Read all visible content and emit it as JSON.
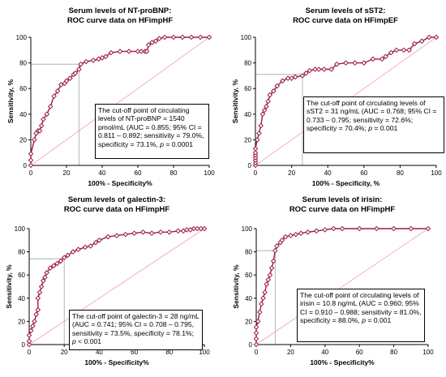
{
  "colors": {
    "curve": "#9b1b46",
    "marker_fill": "#ffffff",
    "reference_line": "#f2a3a3",
    "cutoff_line": "#a6a6a6",
    "axis": "#000000"
  },
  "chart_data": [
    {
      "type": "line",
      "title": "Serum levels of NT-proBNP:",
      "subtitle": "ROC curve data on HFimpHF",
      "xlabel": "100% - Specificity%",
      "ylabel": "Sensitivity, %",
      "xlim": [
        0,
        100
      ],
      "ylim": [
        0,
        100
      ],
      "xticks": [
        "0",
        "20",
        "40",
        "60",
        "80",
        "100"
      ],
      "yticks": [
        "0",
        "20",
        "40",
        "60",
        "80",
        "100"
      ],
      "grid": false,
      "cutoff": {
        "x": 27,
        "y": 79
      },
      "annotation": [
        "The cut-off point of circulating",
        "levels of NT-proBNP = 1540",
        "pmol/mL (AUC = 0.855; 95% CI",
        "= 0.811 – 0.892; sensitivity =",
        "79.0%, specificity = 73.1%, ",
        "p",
        " =",
        "0.0001"
      ],
      "series": [
        {
          "x": [
            0,
            0,
            0,
            2,
            3,
            4,
            5,
            6,
            7,
            9,
            11,
            13,
            15,
            17,
            19,
            20,
            22,
            24,
            25,
            27,
            28,
            31,
            35,
            38,
            40,
            42,
            45,
            50,
            55,
            60,
            62,
            64,
            65,
            66,
            68,
            70,
            72,
            75,
            80,
            85,
            90,
            95,
            100
          ],
          "y": [
            0,
            4,
            9,
            20,
            25,
            27,
            27,
            31,
            36,
            40,
            46,
            54,
            58,
            63,
            64,
            66,
            68,
            71,
            72,
            75,
            79,
            81,
            82,
            83,
            84,
            85,
            88,
            89,
            89,
            89,
            89,
            89,
            89,
            94,
            96,
            97,
            99,
            100,
            100,
            100,
            100,
            100,
            100
          ]
        }
      ]
    },
    {
      "type": "line",
      "title": "Serum levels of sST2:",
      "subtitle": "ROC curve data on HFimpEF",
      "xlabel": "100% - Specificity, %",
      "ylabel": "Sensitivity, %",
      "xlim": [
        0,
        100
      ],
      "ylim": [
        0,
        100
      ],
      "xticks": [
        "0",
        "20",
        "40",
        "60",
        "80",
        "100"
      ],
      "yticks": [
        "0",
        "20",
        "40",
        "60",
        "80",
        "100"
      ],
      "grid": false,
      "cutoff": {
        "x": 26,
        "y": 71
      },
      "annotation": [
        "The cut-off point of circulating",
        "levels of sST2 = 31 ng/mL  (AUC =",
        "0.768; 95% CI = 0.733 – 0.795;",
        "sensitivity = 72.6%; specificity =",
        "70.4%; ",
        "p",
        " = 0.001"
      ],
      "series": [
        {
          "x": [
            0,
            0,
            0,
            0,
            0,
            0,
            0,
            1,
            2,
            3,
            4,
            5,
            6,
            7,
            8,
            10,
            12,
            15,
            18,
            20,
            22,
            26,
            28,
            30,
            33,
            35,
            38,
            42,
            45,
            50,
            55,
            60,
            65,
            70,
            72,
            75,
            78,
            82,
            85,
            88,
            92,
            96,
            100
          ],
          "y": [
            0,
            2,
            4,
            6,
            8,
            10,
            13,
            20,
            25,
            31,
            40,
            43,
            46,
            50,
            55,
            58,
            62,
            66,
            68,
            68,
            69,
            70,
            72,
            74,
            75,
            75,
            75,
            75,
            79,
            80,
            80,
            80,
            83,
            83,
            85,
            88,
            90,
            90,
            90,
            95,
            97,
            100,
            100
          ]
        }
      ]
    },
    {
      "type": "line",
      "title": "Serum levels of galectin-3:",
      "subtitle": "ROC curve data on HFimpHF",
      "xlabel": "100% - Specificity%",
      "ylabel": "Sensitivity, %",
      "xlim": [
        0,
        100
      ],
      "ylim": [
        0,
        100
      ],
      "xticks": [
        "0",
        "20",
        "40",
        "60",
        "80",
        "100"
      ],
      "yticks": [
        "0",
        "20",
        "40",
        "60",
        "80",
        "100"
      ],
      "grid": false,
      "cutoff": {
        "x": 20,
        "y": 74
      },
      "annotation": [
        "The cut-off point of galectin-3 = 28",
        "ng/mL (AUC = 0.741; 95% CI =",
        "0.708 – 0.795, sensitivity = 73.5%,",
        "specificity = 78.1%; ",
        "p",
        " < 0.001"
      ],
      "series": [
        {
          "x": [
            0,
            0,
            0,
            1,
            2,
            3,
            4,
            5,
            5,
            6,
            7,
            8,
            9,
            10,
            12,
            14,
            16,
            18,
            20,
            22,
            25,
            28,
            32,
            35,
            38,
            40,
            45,
            50,
            55,
            60,
            65,
            70,
            75,
            80,
            85,
            88,
            90,
            92,
            94,
            96,
            98,
            100
          ],
          "y": [
            0,
            3,
            8,
            12,
            16,
            20,
            26,
            30,
            40,
            45,
            50,
            55,
            58,
            62,
            66,
            68,
            70,
            72,
            75,
            77,
            80,
            82,
            84,
            85,
            88,
            90,
            93,
            94,
            95,
            96,
            97,
            96,
            97,
            97,
            98,
            98,
            99,
            99,
            100,
            100,
            100,
            100
          ]
        }
      ]
    },
    {
      "type": "line",
      "title": "Serum levels of irisin:",
      "subtitle": "ROC curve data on HFimpHF",
      "xlabel": "100% - Specificity%",
      "ylabel": "Sensitivity, %",
      "xlim": [
        0,
        100
      ],
      "ylim": [
        0,
        100
      ],
      "xticks": [
        "0",
        "20",
        "40",
        "60",
        "80",
        "100"
      ],
      "yticks": [
        "0",
        "20",
        "40",
        "60",
        "80",
        "100"
      ],
      "grid": false,
      "cutoff": {
        "x": 11,
        "y": 81
      },
      "annotation": [
        "The cut-off point of circulating",
        "levels of irisin = 10.8 ng/mL (AUC",
        "= 0.960; 95% CI = 0.910 – 0.988;",
        "sensitivity = 81.0%, specificity =",
        "88.0%, ",
        "p",
        " = 0.001"
      ],
      "series": [
        {
          "x": [
            0,
            0,
            0,
            0,
            1,
            2,
            3,
            4,
            5,
            6,
            7,
            8,
            9,
            10,
            11,
            12,
            14,
            15,
            17,
            20,
            23,
            26,
            30,
            35,
            40,
            45,
            50,
            60,
            70,
            80,
            90,
            100
          ],
          "y": [
            0,
            5,
            10,
            15,
            20,
            28,
            35,
            40,
            45,
            52,
            56,
            60,
            66,
            72,
            81,
            85,
            88,
            90,
            93,
            94,
            95,
            96,
            97,
            98,
            99,
            100,
            100,
            100,
            100,
            100,
            100,
            100
          ]
        }
      ]
    }
  ]
}
